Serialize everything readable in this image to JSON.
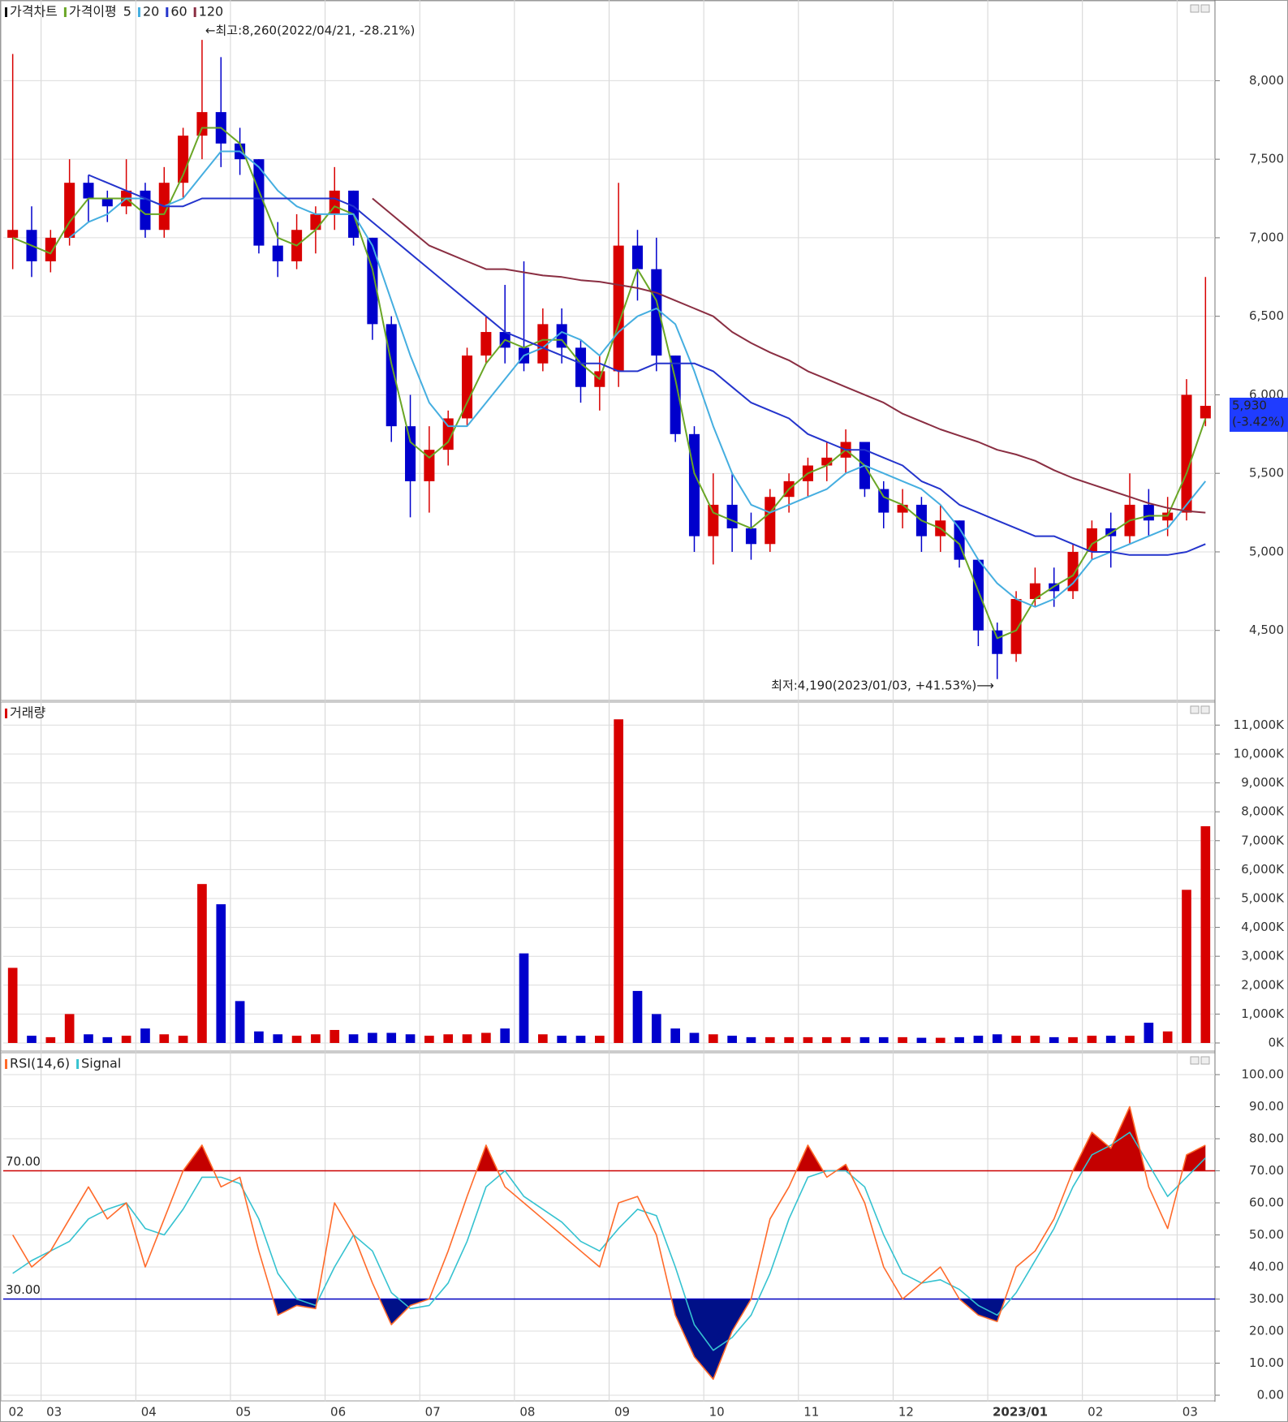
{
  "chart_data": [
    {
      "type": "candlestick",
      "title": "가격차트",
      "ma_title": "가격이평",
      "open": [
        7000,
        7050,
        6850,
        7000,
        7350,
        7250,
        7200,
        7300,
        7050,
        7350,
        7650,
        7800,
        7600,
        7500,
        6950,
        6850,
        7050,
        7150,
        7300,
        7000,
        6450,
        5800,
        5450,
        5650,
        5850,
        6250,
        6400,
        6300,
        6200,
        6450,
        6300,
        6050,
        6150,
        6950,
        6800,
        6250,
        5750,
        5100,
        5300,
        5150,
        5050,
        5350,
        5450,
        5550,
        5600,
        5700,
        5400,
        5250,
        5300,
        5100,
        5200,
        4950,
        4500,
        4350,
        4700,
        4800,
        4750,
        5000,
        5150,
        5100,
        5300,
        5200,
        5250,
        5850
      ],
      "high": [
        8170,
        7200,
        7050,
        7500,
        7400,
        7300,
        7500,
        7350,
        7450,
        7700,
        8260,
        8150,
        7700,
        7500,
        7100,
        7150,
        7200,
        7450,
        7300,
        7000,
        6500,
        6000,
        5800,
        5900,
        6300,
        6500,
        6700,
        6850,
        6550,
        6550,
        6350,
        6250,
        7350,
        7050,
        7000,
        6250,
        5800,
        5500,
        5500,
        5250,
        5400,
        5500,
        5600,
        5700,
        5780,
        5700,
        5450,
        5400,
        5350,
        5300,
        5200,
        4950,
        4550,
        4750,
        4900,
        4900,
        5050,
        5200,
        5250,
        5500,
        5400,
        5350,
        6100,
        6750
      ],
      "low": [
        6800,
        6750,
        6780,
        6950,
        7100,
        7100,
        7150,
        7000,
        7000,
        7250,
        7500,
        7450,
        7400,
        6900,
        6750,
        6800,
        6900,
        7050,
        6950,
        6350,
        5700,
        5220,
        5250,
        5550,
        5800,
        6200,
        6200,
        6150,
        6150,
        6200,
        5950,
        5900,
        6050,
        6600,
        6150,
        5700,
        5000,
        4920,
        5000,
        4950,
        5000,
        5250,
        5350,
        5450,
        5500,
        5350,
        5150,
        5150,
        5000,
        5000,
        4900,
        4400,
        4190,
        4300,
        4650,
        4650,
        4700,
        4950,
        4900,
        5050,
        5100,
        5100,
        5200,
        5800
      ],
      "close": [
        7050,
        6850,
        7000,
        7350,
        7250,
        7200,
        7300,
        7050,
        7350,
        7650,
        7800,
        7600,
        7500,
        6950,
        6850,
        7050,
        7150,
        7300,
        7000,
        6450,
        5800,
        5450,
        5650,
        5850,
        6250,
        6400,
        6300,
        6200,
        6450,
        6300,
        6050,
        6150,
        6950,
        6800,
        6250,
        5750,
        5100,
        5300,
        5150,
        5050,
        5350,
        5450,
        5550,
        5600,
        5700,
        5400,
        5250,
        5300,
        5100,
        5200,
        4950,
        4500,
        4350,
        4700,
        4800,
        4750,
        5000,
        5150,
        5100,
        5300,
        5200,
        5250,
        6000,
        5930
      ],
      "up_color": "#d80000",
      "down_color": "#0000cc",
      "series": [
        {
          "name": "5",
          "color": "#6aa626",
          "values": [
            7000,
            6950,
            6900,
            7100,
            7250,
            7250,
            7250,
            7150,
            7150,
            7400,
            7700,
            7700,
            7600,
            7300,
            7000,
            6950,
            7050,
            7200,
            7150,
            6800,
            6200,
            5700,
            5600,
            5700,
            5950,
            6200,
            6350,
            6300,
            6350,
            6350,
            6200,
            6100,
            6450,
            6800,
            6600,
            6100,
            5500,
            5250,
            5200,
            5150,
            5250,
            5400,
            5500,
            5550,
            5650,
            5550,
            5350,
            5300,
            5200,
            5150,
            5050,
            4750,
            4450,
            4500,
            4700,
            4780,
            4850,
            5050,
            5120,
            5200,
            5230,
            5230,
            5500,
            5850
          ]
        },
        {
          "name": "20",
          "color": "#45aee0",
          "values": [
            null,
            null,
            null,
            7000,
            7100,
            7150,
            7250,
            7250,
            7200,
            7250,
            7400,
            7550,
            7550,
            7450,
            7300,
            7200,
            7150,
            7150,
            7150,
            6950,
            6600,
            6250,
            5950,
            5800,
            5800,
            5950,
            6100,
            6250,
            6300,
            6400,
            6350,
            6250,
            6400,
            6500,
            6550,
            6450,
            6150,
            5800,
            5500,
            5300,
            5250,
            5300,
            5350,
            5400,
            5500,
            5550,
            5500,
            5450,
            5400,
            5300,
            5150,
            4950,
            4800,
            4700,
            4650,
            4700,
            4800,
            4950,
            5000,
            5050,
            5100,
            5150,
            5300,
            5450
          ]
        },
        {
          "name": "60",
          "color": "#2434cc",
          "values": [
            null,
            null,
            null,
            null,
            7400,
            7350,
            7300,
            7250,
            7200,
            7200,
            7250,
            7250,
            7250,
            7250,
            7250,
            7250,
            7250,
            7250,
            7200,
            7100,
            7000,
            6900,
            6800,
            6700,
            6600,
            6500,
            6400,
            6350,
            6300,
            6250,
            6200,
            6200,
            6150,
            6150,
            6200,
            6200,
            6200,
            6150,
            6050,
            5950,
            5900,
            5850,
            5750,
            5700,
            5650,
            5650,
            5600,
            5550,
            5450,
            5400,
            5300,
            5250,
            5200,
            5150,
            5100,
            5100,
            5050,
            5000,
            5000,
            4980,
            4980,
            4980,
            5000,
            5050
          ]
        },
        {
          "name": "120",
          "color": "#8a2e42",
          "values": [
            null,
            null,
            null,
            null,
            null,
            null,
            null,
            null,
            null,
            null,
            null,
            null,
            null,
            null,
            null,
            null,
            null,
            null,
            null,
            7250,
            7150,
            7050,
            6950,
            6900,
            6850,
            6800,
            6800,
            6780,
            6760,
            6750,
            6730,
            6720,
            6700,
            6680,
            6650,
            6600,
            6550,
            6500,
            6400,
            6330,
            6270,
            6220,
            6150,
            6100,
            6050,
            6000,
            5950,
            5880,
            5830,
            5780,
            5740,
            5700,
            5650,
            5620,
            5580,
            5520,
            5470,
            5430,
            5390,
            5350,
            5310,
            5280,
            5260,
            5250
          ]
        }
      ],
      "ylim": [
        4080,
        8400
      ],
      "yticks": [
        {
          "value": 4500,
          "label": "4,500"
        },
        {
          "value": 5000,
          "label": "5,000"
        },
        {
          "value": 5500,
          "label": "5,500"
        },
        {
          "value": 6000,
          "label": "6,000"
        },
        {
          "value": 6500,
          "label": "6,500"
        },
        {
          "value": 7000,
          "label": "7,000"
        },
        {
          "value": 7500,
          "label": "7,500"
        },
        {
          "value": 8000,
          "label": "8,000"
        }
      ],
      "grid": true,
      "annotations": [
        {
          "text": "←최고:8,260(2022/04/21, -28.21%)",
          "color": "#e00000"
        },
        {
          "text": "최저:4,190(2023/01/03, +41.53%)⟶",
          "color": "#1010c0"
        }
      ],
      "last_value_label": {
        "value": 5930,
        "label": "5,930",
        "change": "(-3.42%)",
        "color": "#1f3cff"
      }
    },
    {
      "type": "bar",
      "title": "거래량",
      "title_color": "#d80000",
      "values": [
        2600,
        250,
        200,
        1000,
        300,
        200,
        250,
        500,
        300,
        250,
        5500,
        4800,
        1450,
        400,
        300,
        250,
        300,
        450,
        300,
        350,
        350,
        300,
        250,
        300,
        300,
        350,
        500,
        3100,
        300,
        250,
        250,
        250,
        11200,
        1800,
        1000,
        500,
        350,
        300,
        250,
        200,
        200,
        200,
        200,
        200,
        200,
        200,
        200,
        200,
        180,
        180,
        200,
        250,
        300,
        250,
        250,
        200,
        200,
        250,
        250,
        250,
        700,
        400,
        5300,
        7500
      ],
      "up_color": "#d80000",
      "down_color": "#0000cc",
      "ylim": [
        0,
        11600
      ],
      "yticks": [
        {
          "value": 0,
          "label": "0K"
        },
        {
          "value": 1000,
          "label": "1,000K"
        },
        {
          "value": 2000,
          "label": "2,000K"
        },
        {
          "value": 3000,
          "label": "3,000K"
        },
        {
          "value": 4000,
          "label": "4,000K"
        },
        {
          "value": 5000,
          "label": "5,000K"
        },
        {
          "value": 6000,
          "label": "6,000K"
        },
        {
          "value": 7000,
          "label": "7,000K"
        },
        {
          "value": 8000,
          "label": "8,000K"
        },
        {
          "value": 9000,
          "label": "9,000K"
        },
        {
          "value": 10000,
          "label": "10,000K"
        },
        {
          "value": 11000,
          "label": "11,000K"
        }
      ],
      "grid": true
    },
    {
      "type": "line",
      "categories": [
        "02",
        null,
        "03",
        null,
        null,
        null,
        null,
        "04",
        null,
        null,
        null,
        null,
        "05",
        null,
        null,
        null,
        null,
        "06",
        null,
        null,
        null,
        null,
        "07",
        null,
        null,
        null,
        null,
        "08",
        null,
        null,
        null,
        null,
        "09",
        null,
        null,
        null,
        null,
        "10",
        null,
        null,
        null,
        null,
        "11",
        null,
        null,
        null,
        null,
        "12",
        null,
        null,
        null,
        null,
        "2023/01",
        null,
        null,
        null,
        null,
        "02",
        null,
        null,
        null,
        null,
        "03",
        null
      ],
      "series": [
        {
          "name": "RSI(14,6)",
          "color": "#ff6a2a",
          "values": [
            50,
            40,
            45,
            55,
            65,
            55,
            60,
            40,
            55,
            70,
            78,
            65,
            68,
            45,
            25,
            28,
            27,
            60,
            50,
            35,
            22,
            28,
            30,
            45,
            62,
            78,
            65,
            60,
            55,
            50,
            45,
            40,
            60,
            62,
            50,
            25,
            12,
            5,
            20,
            30,
            55,
            65,
            78,
            68,
            72,
            60,
            40,
            30,
            35,
            40,
            30,
            25,
            23,
            40,
            45,
            55,
            70,
            82,
            77,
            90,
            65,
            52,
            75,
            78
          ]
        },
        {
          "name": "Signal",
          "color": "#35c2d0",
          "values": [
            38,
            42,
            45,
            48,
            55,
            58,
            60,
            52,
            50,
            58,
            68,
            68,
            66,
            55,
            38,
            30,
            28,
            40,
            50,
            45,
            32,
            27,
            28,
            35,
            48,
            65,
            70,
            62,
            58,
            54,
            48,
            45,
            52,
            58,
            56,
            40,
            22,
            14,
            18,
            25,
            38,
            55,
            68,
            70,
            70,
            65,
            50,
            38,
            35,
            36,
            33,
            28,
            25,
            32,
            42,
            52,
            65,
            75,
            78,
            82,
            72,
            62,
            68,
            74
          ]
        }
      ],
      "reference_lines": [
        {
          "value": 70,
          "label": "70.00",
          "color": "#cc0000",
          "fill": "#c40000"
        },
        {
          "value": 30,
          "label": "30.00",
          "color": "#0000c0",
          "fill": "#001088"
        }
      ],
      "ylim": [
        0,
        100
      ],
      "yticks": [
        {
          "value": 0,
          "label": "0.00"
        },
        {
          "value": 10,
          "label": "10.00"
        },
        {
          "value": 20,
          "label": "20.00"
        },
        {
          "value": 30,
          "label": "30.00"
        },
        {
          "value": 40,
          "label": "40.00"
        },
        {
          "value": 50,
          "label": "50.00"
        },
        {
          "value": 60,
          "label": "60.00"
        },
        {
          "value": 70,
          "label": "70.00"
        },
        {
          "value": 80,
          "label": "80.00"
        },
        {
          "value": 90,
          "label": "90.00"
        },
        {
          "value": 100,
          "label": "100.00"
        }
      ],
      "grid": true
    }
  ]
}
